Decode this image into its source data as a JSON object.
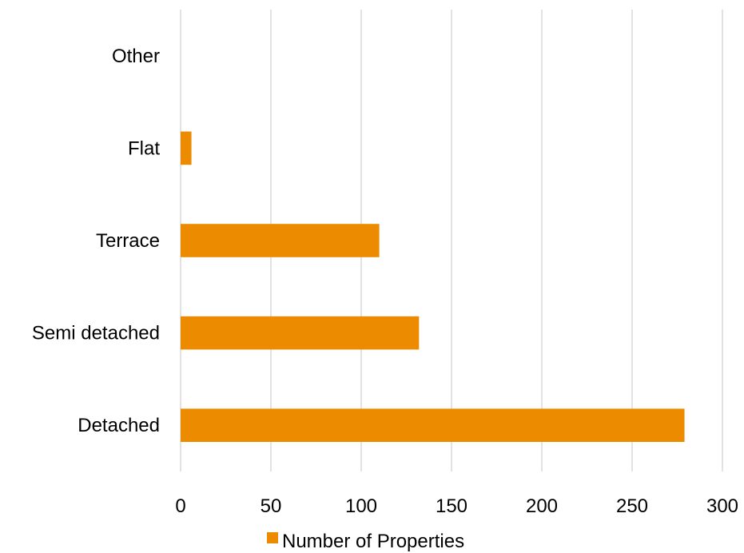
{
  "chart_data": {
    "type": "bar",
    "orientation": "horizontal",
    "categories": [
      "Detached",
      "Semi detached",
      "Terrace",
      "Flat",
      "Other"
    ],
    "series": [
      {
        "name": "Number of Properties",
        "values": [
          279,
          132,
          110,
          6,
          0
        ],
        "color": "#ED8B00"
      }
    ],
    "xlim": [
      0,
      300
    ],
    "xticks": [
      0,
      50,
      100,
      150,
      200,
      250,
      300
    ],
    "grid": "vertical",
    "legend_position": "bottom",
    "gridline_color": "#D9D9D9"
  }
}
